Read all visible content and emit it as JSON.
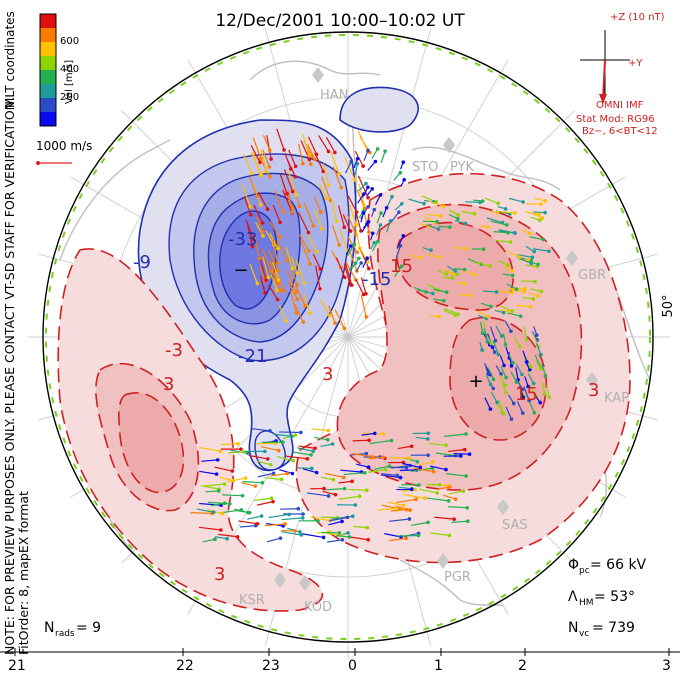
{
  "title": "12/Dec/2001  10:00–10:02 UT",
  "coords_label": "MLT coordinates",
  "colorbar": {
    "label": "Vel [m/s]",
    "ticks": [
      "600",
      "400",
      "200"
    ],
    "colors": [
      "#e01010",
      "#ff7a00",
      "#ffc000",
      "#8ed400",
      "#22b050",
      "#1f9a9a",
      "#2b4cc8",
      "#0a0aee"
    ]
  },
  "vector_scale": "1000 m/s",
  "notice": "NOTE: FOR PREVIEW PURPOSES ONLY. PLEASE CONTACT VT-SD STAFF FOR VERIFICATION.",
  "fitorder": "FitOrder: 8, mapEX format",
  "imf": {
    "z_label": "+Z (10 nT)",
    "y_label": "+Y",
    "source": "OMNI IMF",
    "model": "Stat Mod: RG96",
    "model_params": "Bz−, 6<BT<12"
  },
  "stats": {
    "pcp_label": "Φ",
    "pcp_sub": "pc",
    "pcp_value": " =  66 kV",
    "hm_label": "Λ",
    "hm_sub": "HM",
    "hm_value": " =  53°",
    "nvc_label": "N",
    "nvc_sub": "vc",
    "nvc_value": " =  739",
    "nrads_label": "N",
    "nrads_sub": "rads",
    "nrads_value": " =  9"
  },
  "lat_label": "50°",
  "mlt_ticks": [
    "21",
    "22",
    "23",
    "0",
    "1",
    "2",
    "3"
  ],
  "stations": [
    "HAN",
    "STO",
    "PYK",
    "GBR",
    "KAP",
    "SAS",
    "PGR",
    "KSR",
    "KOD"
  ],
  "potential_labels": [
    "-9",
    "-33",
    "-21",
    "-15",
    "-3",
    "3",
    "15",
    "15",
    "3",
    "3",
    "3"
  ],
  "extrema": [
    "−",
    "+"
  ],
  "chart_data": {
    "type": "convection-map",
    "potential_contours_kV": [
      -33,
      -27,
      -21,
      -15,
      -9,
      -3,
      3,
      9,
      15
    ],
    "cross_polar_cap_potential_kV": 66,
    "heppner_maynard_boundary_deg": 53,
    "vector_count": 739,
    "radar_count": 9,
    "velocity_range_m_s": [
      0,
      1000
    ],
    "x_axis": "MLT",
    "outer_latitude_deg": 50
  }
}
